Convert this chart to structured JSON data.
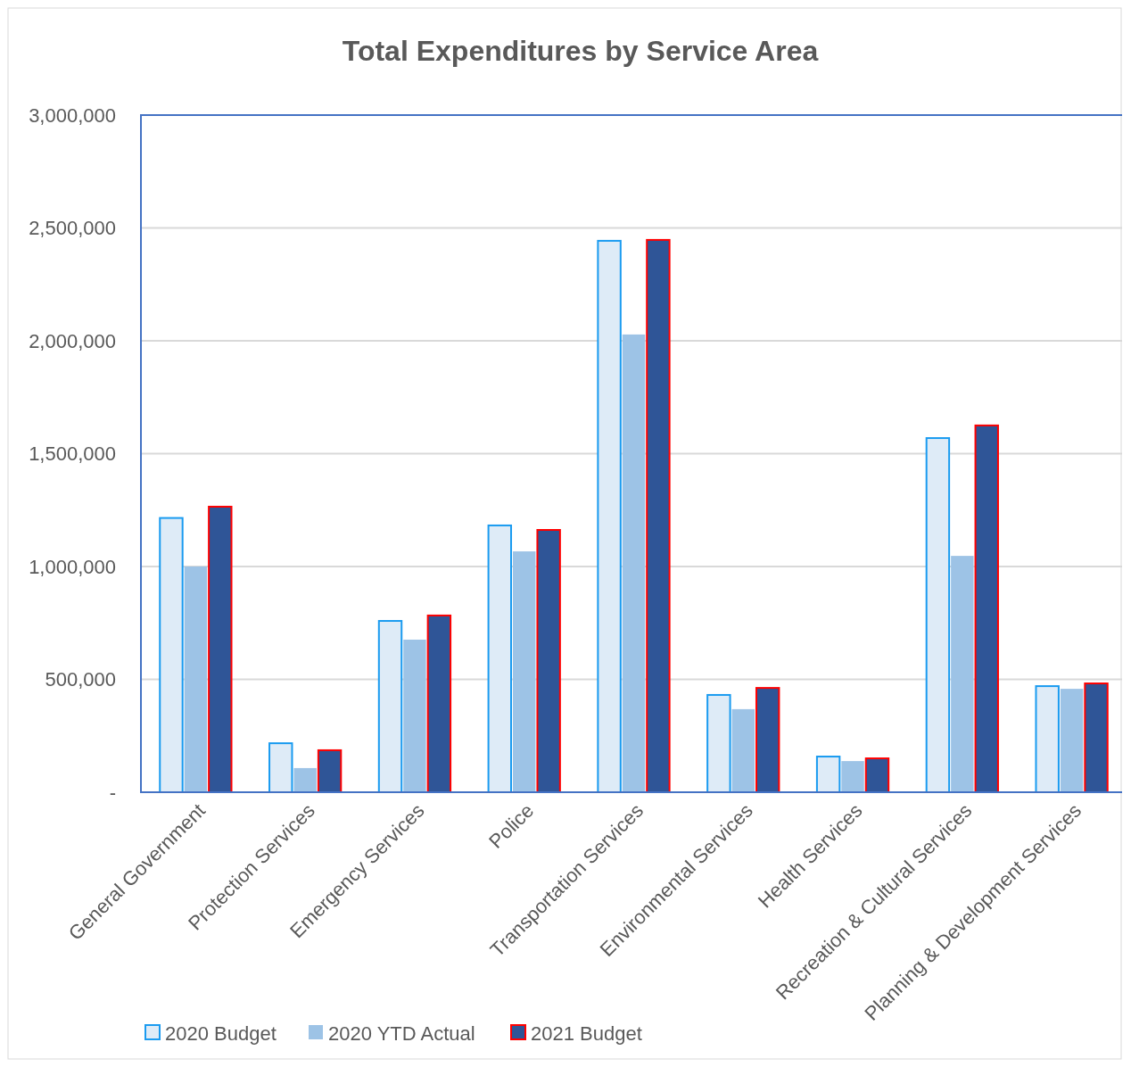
{
  "chart_data": {
    "type": "bar",
    "title": "Total Expenditures by Service Area",
    "categories": [
      "General Government",
      "Protection Services",
      "Emergency Services",
      "Police",
      "Transportation Services",
      "Environmental Services",
      "Health Services",
      "Recreation & Cultural Services",
      "Planning & Development Services"
    ],
    "series": [
      {
        "name": "2020 Budget",
        "color": "#deebf7",
        "values": [
          1215000,
          217000,
          759000,
          1182000,
          2443000,
          431000,
          158000,
          1569000,
          470000
        ]
      },
      {
        "name": "2020 YTD Actual",
        "color": "#9dc3e6",
        "values": [
          1000000,
          107000,
          676000,
          1067000,
          2028000,
          368000,
          138000,
          1047000,
          458000
        ]
      },
      {
        "name": "2021 Budget",
        "color": "#2f5597",
        "values": [
          1265000,
          186000,
          783000,
          1162000,
          2447000,
          462000,
          150000,
          1625000,
          482000
        ]
      }
    ],
    "ylim": [
      0,
      3000000
    ],
    "yticks": [
      {
        "value": 0,
        "label": "-"
      },
      {
        "value": 500000,
        "label": "500,000"
      },
      {
        "value": 1000000,
        "label": "1,000,000"
      },
      {
        "value": 1500000,
        "label": "1,500,000"
      },
      {
        "value": 2000000,
        "label": "2,000,000"
      },
      {
        "value": 2500000,
        "label": "2,500,000"
      },
      {
        "value": 3000000,
        "label": "3,000,000"
      }
    ],
    "grid": "y",
    "legend": "bottom left"
  }
}
